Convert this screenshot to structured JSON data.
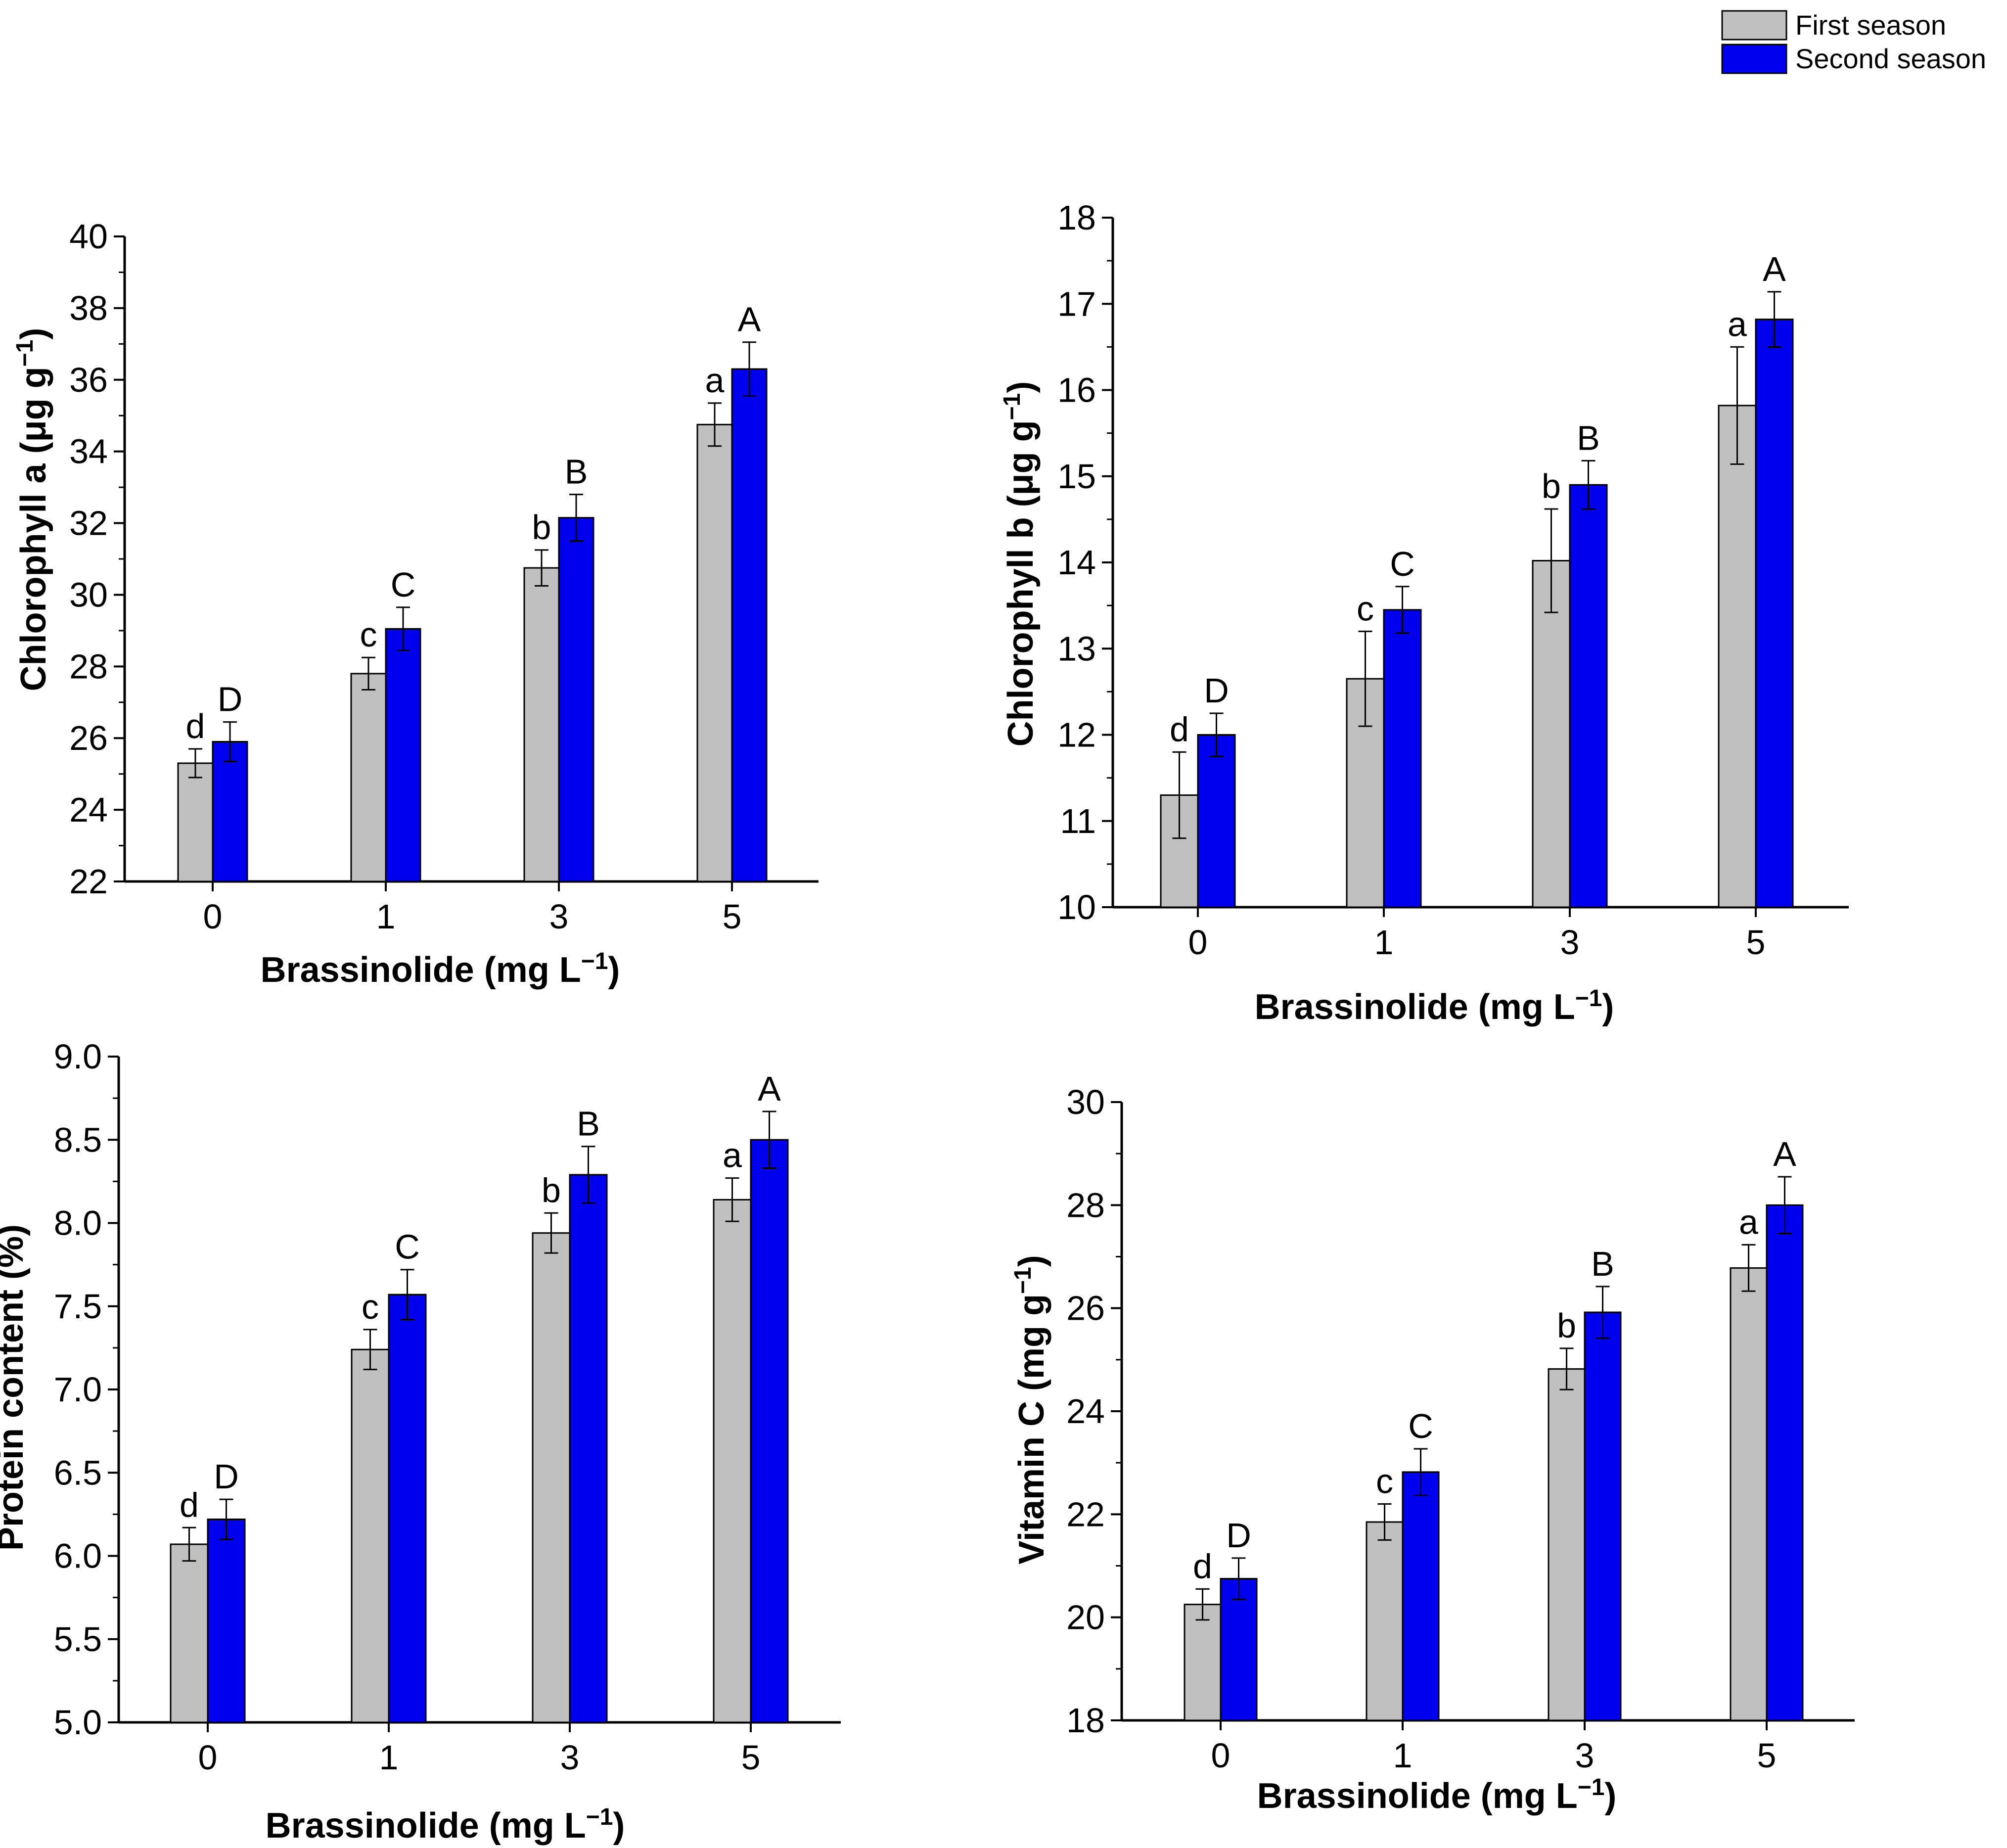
{
  "legend": {
    "entries": [
      {
        "label": "First season",
        "color": "#c0c0c0"
      },
      {
        "label": "Second season",
        "color": "#0000ee"
      }
    ]
  },
  "chart_data": [
    {
      "type": "bar",
      "title": "",
      "categories": [
        "0",
        "1",
        "3",
        "5"
      ],
      "xlabel": "Brassinolide (mg L",
      "xlabel_sup": "−1",
      "xlabel_close": ")",
      "ylabel": "Chlorophyll a (μg g",
      "ylabel_sup": "−1",
      "ylabel_close": ")",
      "ylim": [
        22,
        40
      ],
      "yticks": [
        "22",
        "24",
        "26",
        "28",
        "30",
        "32",
        "34",
        "36",
        "38",
        "40"
      ],
      "series": [
        {
          "name": "First season",
          "values": [
            25.3,
            27.8,
            30.75,
            34.75
          ],
          "errors": [
            0.4,
            0.45,
            0.5,
            0.6
          ],
          "labels": [
            "d",
            "c",
            "b",
            "a"
          ]
        },
        {
          "name": "Second season",
          "values": [
            25.9,
            29.05,
            32.15,
            36.3
          ],
          "errors": [
            0.55,
            0.6,
            0.65,
            0.75
          ],
          "labels": [
            "D",
            "C",
            "B",
            "A"
          ]
        }
      ]
    },
    {
      "type": "bar",
      "title": "",
      "categories": [
        "0",
        "1",
        "3",
        "5"
      ],
      "xlabel": "Brassinolide (mg L",
      "xlabel_sup": "−1",
      "xlabel_close": ")",
      "ylabel": "Chlorophyll b (μg g",
      "ylabel_sup": "−1",
      "ylabel_close": ")",
      "ylim": [
        10,
        18
      ],
      "yticks": [
        "10",
        "11",
        "12",
        "13",
        "14",
        "15",
        "16",
        "17",
        "18"
      ],
      "series": [
        {
          "name": "First season",
          "values": [
            11.3,
            12.65,
            14.02,
            15.82
          ],
          "errors": [
            0.5,
            0.55,
            0.6,
            0.68
          ],
          "labels": [
            "d",
            "c",
            "b",
            "a"
          ]
        },
        {
          "name": "Second season",
          "values": [
            12.0,
            13.45,
            14.9,
            16.82
          ],
          "errors": [
            0.25,
            0.27,
            0.28,
            0.32
          ],
          "labels": [
            "D",
            "C",
            "B",
            "A"
          ]
        }
      ]
    },
    {
      "type": "bar",
      "title": "",
      "categories": [
        "0",
        "1",
        "3",
        "5"
      ],
      "xlabel": "Brassinolide (mg L",
      "xlabel_sup": "−1",
      "xlabel_close": ")",
      "ylabel": "Protein content (%)",
      "ylabel_sup": "",
      "ylabel_close": "",
      "ylim": [
        5.0,
        9.0
      ],
      "yticks": [
        "5.0",
        "5.5",
        "6.0",
        "6.5",
        "7.0",
        "7.5",
        "8.0",
        "8.5",
        "9.0"
      ],
      "series": [
        {
          "name": "First season",
          "values": [
            6.07,
            7.24,
            7.94,
            8.14
          ],
          "errors": [
            0.1,
            0.12,
            0.12,
            0.13
          ],
          "labels": [
            "d",
            "c",
            "b",
            "a"
          ]
        },
        {
          "name": "Second season",
          "values": [
            6.22,
            7.57,
            8.29,
            8.5
          ],
          "errors": [
            0.12,
            0.15,
            0.17,
            0.17
          ],
          "labels": [
            "D",
            "C",
            "B",
            "A"
          ]
        }
      ]
    },
    {
      "type": "bar",
      "title": "",
      "categories": [
        "0",
        "1",
        "3",
        "5"
      ],
      "xlabel": "Brassinolide (mg L",
      "xlabel_sup": "−1",
      "xlabel_close": ")",
      "ylabel": "Vitamin C (mg g",
      "ylabel_sup": "−1",
      "ylabel_close": ")",
      "ylim": [
        18,
        30
      ],
      "yticks": [
        "18",
        "20",
        "22",
        "24",
        "26",
        "28",
        "30"
      ],
      "series": [
        {
          "name": "First season",
          "values": [
            20.25,
            21.85,
            24.82,
            26.78
          ],
          "errors": [
            0.3,
            0.35,
            0.4,
            0.45
          ],
          "labels": [
            "d",
            "c",
            "b",
            "a"
          ]
        },
        {
          "name": "Second season",
          "values": [
            20.75,
            22.82,
            25.92,
            28.0
          ],
          "errors": [
            0.4,
            0.45,
            0.5,
            0.55
          ],
          "labels": [
            "D",
            "C",
            "B",
            "A"
          ]
        }
      ]
    }
  ]
}
